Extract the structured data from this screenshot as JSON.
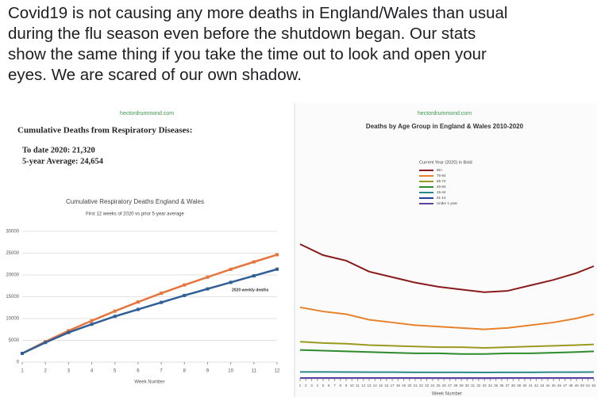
{
  "post": {
    "lines": [
      "Covid19 is not causing any more deaths in England/Wales than usual",
      "during the flu season even before the shutdown began. Our stats",
      "show the same thing if you take the time out to look and open your",
      "eyes. We are scared of our own shadow."
    ]
  },
  "chart_data": [
    {
      "type": "line",
      "source": "hectordrummond.com",
      "heading": "Cumulative Deaths from Respiratory Diseases:",
      "stats": [
        "To date 2020:  21,320",
        "5-year Average: 24,654"
      ],
      "title": "Cumulative Respiratory Deaths England & Wales",
      "subtitle": "First 12 weeks of 2020 vs prior 5-year average",
      "x_label": "Week Number",
      "x": [
        1,
        2,
        3,
        4,
        5,
        6,
        7,
        8,
        9,
        10,
        11,
        12
      ],
      "xlim": [
        1,
        12
      ],
      "xticks": [
        1,
        2,
        3,
        4,
        5,
        6,
        7,
        8,
        9,
        10,
        11,
        12
      ],
      "ylim": [
        0,
        30000
      ],
      "yticks": [
        0,
        5000,
        10000,
        15000,
        20000,
        25000,
        30000
      ],
      "grid": true,
      "series": [
        {
          "color": "#e8743b",
          "values": [
            2000,
            4700,
            7200,
            9500,
            11700,
            13800,
            15800,
            17700,
            19500,
            21300,
            23000,
            24654
          ]
        },
        {
          "name": "2020 weekly deaths",
          "color": "#2f5f98",
          "values": [
            2000,
            4500,
            6800,
            8700,
            10500,
            12100,
            13700,
            15300,
            16800,
            18300,
            19800,
            21320
          ]
        }
      ]
    },
    {
      "type": "line",
      "source": "hectordrummond.com",
      "title": "Deaths by Age Group in England & Wales 2010-2020",
      "legend_title": "Current Year (2020) in Bold",
      "x_label": "Week Number",
      "x": [
        1,
        5,
        9,
        13,
        17,
        21,
        25,
        29,
        33,
        37,
        41,
        45,
        49,
        52
      ],
      "xlim": [
        1,
        52
      ],
      "xticks": [
        1,
        2,
        3,
        4,
        5,
        6,
        7,
        8,
        9,
        10,
        11,
        12,
        13,
        14,
        15,
        16,
        17,
        18,
        19,
        20,
        21,
        22,
        23,
        24,
        25,
        26,
        27,
        28,
        29,
        30,
        31,
        32,
        33,
        34,
        35,
        36,
        37,
        38,
        39,
        40,
        41,
        42,
        43,
        44,
        45,
        46,
        47,
        48,
        49,
        50,
        51,
        52
      ],
      "ylim": [
        0,
        12000
      ],
      "series": [
        {
          "name": "85+",
          "color": "#8b1a1a",
          "values": [
            9800,
            9000,
            8600,
            7800,
            7400,
            7000,
            6700,
            6500,
            6300,
            6400,
            6800,
            7200,
            7700,
            8200
          ]
        },
        {
          "name": "75-84",
          "color": "#e8822a",
          "values": [
            5200,
            4900,
            4700,
            4300,
            4100,
            3900,
            3800,
            3700,
            3600,
            3700,
            3900,
            4100,
            4400,
            4700
          ]
        },
        {
          "name": "65-74",
          "color": "#9a9a20",
          "values": [
            2700,
            2600,
            2550,
            2450,
            2400,
            2350,
            2300,
            2300,
            2250,
            2300,
            2350,
            2400,
            2450,
            2500
          ]
        },
        {
          "name": "45-64",
          "color": "#2e8b2e",
          "values": [
            2100,
            2050,
            2000,
            1950,
            1900,
            1850,
            1850,
            1800,
            1800,
            1850,
            1850,
            1900,
            1950,
            2000
          ]
        },
        {
          "name": "15-44",
          "color": "#2a8a8a",
          "values": [
            500,
            500,
            490,
            480,
            480,
            470,
            470,
            470,
            460,
            470,
            470,
            480,
            480,
            490
          ]
        },
        {
          "name": "01-14",
          "color": "#2040a0",
          "values": [
            60,
            60,
            58,
            56,
            55,
            55,
            54,
            54,
            54,
            55,
            56,
            57,
            58,
            60
          ]
        },
        {
          "name": "Under 1 year",
          "color": "#6040a0",
          "values": [
            50,
            50,
            49,
            48,
            48,
            47,
            47,
            47,
            46,
            47,
            47,
            48,
            49,
            50
          ]
        }
      ]
    }
  ]
}
